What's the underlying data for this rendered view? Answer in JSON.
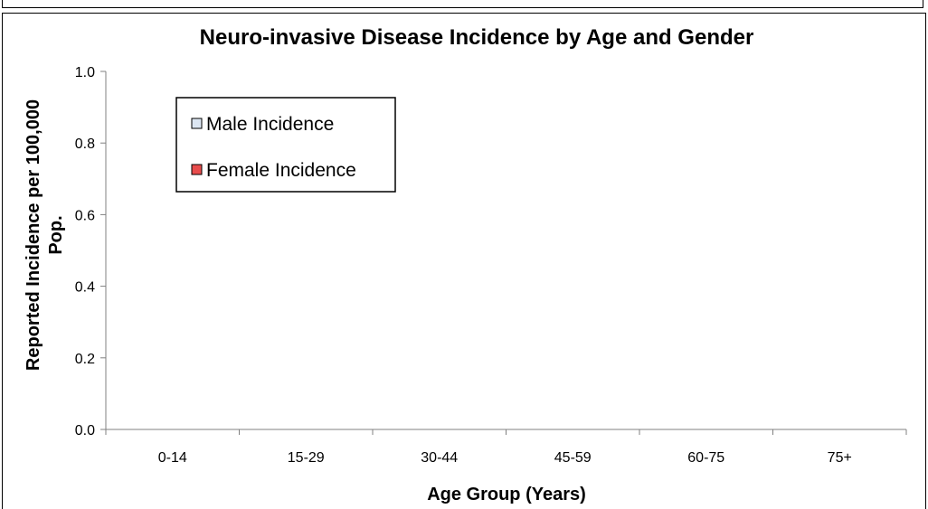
{
  "chart_data": {
    "type": "bar",
    "title": "Neuro-invasive Disease Incidence by Age and Gender",
    "xlabel": "Age Group (Years)",
    "ylabel_line1": "Reported Incidence per 100,000",
    "ylabel_line2": "Pop.",
    "categories": [
      "0-14",
      "15-29",
      "30-44",
      "45-59",
      "60-75",
      "75+"
    ],
    "series": [
      {
        "name": "Male Incidence",
        "color": "#dce6f2",
        "values": [
          0,
          0,
          0,
          0,
          0,
          0
        ]
      },
      {
        "name": "Female Incidence",
        "color": "#e84c4c",
        "values": [
          0,
          0,
          0,
          0,
          0,
          0
        ]
      }
    ],
    "ylim": [
      0,
      1.0
    ],
    "yticks": [
      "0.0",
      "0.2",
      "0.4",
      "0.6",
      "0.8",
      "1.0"
    ],
    "grid": false,
    "legend_position": "top-left"
  }
}
